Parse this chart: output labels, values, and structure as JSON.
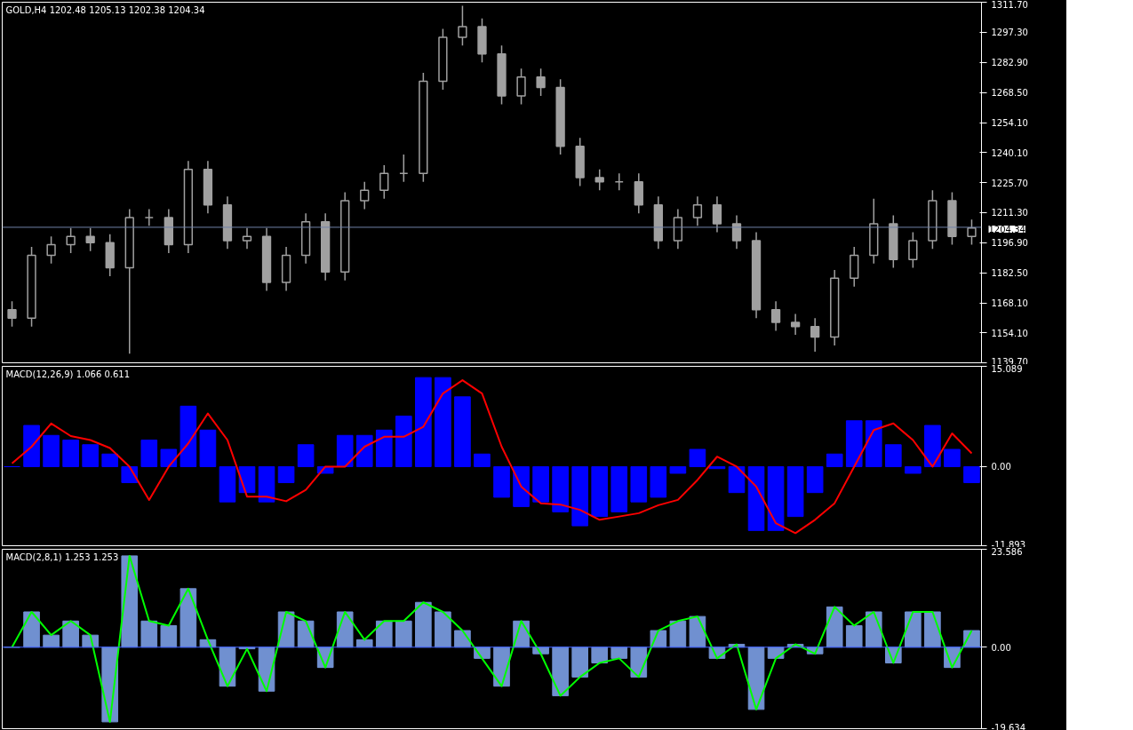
{
  "chart_data": [
    {
      "type": "candlestick",
      "title": "GOLD,H4 1202.48 1205.13 1202.38 1204.34",
      "color": "#a0a0a0",
      "tick_labels": "y",
      "categories": [
        null,
        null,
        null,
        null,
        null,
        null,
        null,
        null,
        null,
        null,
        null,
        null,
        null,
        null,
        null,
        null,
        null,
        null,
        null,
        null,
        null,
        null,
        null,
        null,
        null,
        null,
        null,
        null,
        null,
        null,
        null,
        null,
        null,
        null,
        null,
        null,
        null,
        null,
        null,
        null,
        null,
        null,
        null,
        null,
        null,
        null,
        null,
        null,
        null,
        null
      ],
      "ohlc": [
        [
          1165,
          1169,
          1157,
          1161
        ],
        [
          1161,
          1195,
          1157,
          1191
        ],
        [
          1191,
          1200,
          1187,
          1196
        ],
        [
          1196,
          1204,
          1192,
          1200
        ],
        [
          1200,
          1204,
          1193,
          1197
        ],
        [
          1197,
          1201,
          1181,
          1185
        ],
        [
          1185,
          1213,
          1144,
          1209
        ],
        [
          1209,
          1213,
          1205,
          1209
        ],
        [
          1209,
          1213,
          1192,
          1196
        ],
        [
          1196,
          1236,
          1192,
          1232
        ],
        [
          1232,
          1236,
          1211,
          1215
        ],
        [
          1215,
          1219,
          1194,
          1198
        ],
        [
          1198,
          1204,
          1194,
          1200
        ],
        [
          1200,
          1204,
          1174,
          1178
        ],
        [
          1178,
          1195,
          1174,
          1191
        ],
        [
          1191,
          1211,
          1187,
          1207
        ],
        [
          1207,
          1211,
          1179,
          1183
        ],
        [
          1183,
          1221,
          1179,
          1217
        ],
        [
          1217,
          1226,
          1213,
          1222
        ],
        [
          1222,
          1234,
          1218,
          1230
        ],
        [
          1230,
          1239,
          1226,
          1230
        ],
        [
          1230,
          1278,
          1226,
          1274
        ],
        [
          1274,
          1299,
          1270,
          1295
        ],
        [
          1295,
          1310,
          1291,
          1300
        ],
        [
          1300,
          1304,
          1283,
          1287
        ],
        [
          1287,
          1291,
          1263,
          1267
        ],
        [
          1267,
          1280,
          1263,
          1276
        ],
        [
          1276,
          1280,
          1267,
          1271
        ],
        [
          1271,
          1275,
          1239,
          1243
        ],
        [
          1243,
          1247,
          1224,
          1228
        ],
        [
          1228,
          1232,
          1222,
          1226
        ],
        [
          1226,
          1230,
          1222,
          1226
        ],
        [
          1226,
          1230,
          1211,
          1215
        ],
        [
          1215,
          1219,
          1194,
          1198
        ],
        [
          1198,
          1213,
          1194,
          1209
        ],
        [
          1209,
          1219,
          1205,
          1215
        ],
        [
          1215,
          1219,
          1202,
          1206
        ],
        [
          1206,
          1210,
          1194,
          1198
        ],
        [
          1198,
          1202,
          1161,
          1165
        ],
        [
          1165,
          1169,
          1155,
          1159
        ],
        [
          1159,
          1163,
          1153,
          1157
        ],
        [
          1157,
          1161,
          1145,
          1152
        ],
        [
          1152,
          1184,
          1148,
          1180
        ],
        [
          1180,
          1195,
          1176,
          1191
        ],
        [
          1191,
          1218,
          1187,
          1206
        ],
        [
          1206,
          1210,
          1185,
          1189
        ],
        [
          1189,
          1202,
          1185,
          1198
        ],
        [
          1198,
          1222,
          1194,
          1217
        ],
        [
          1217,
          1221,
          1196,
          1200
        ],
        [
          1200,
          1208,
          1196,
          1204
        ]
      ],
      "ylim": [
        1139.7,
        1311.7
      ],
      "yticks": [
        {
          "value": 1139.7,
          "label": "1139.70"
        },
        {
          "value": 1154.1,
          "label": "1154.10"
        },
        {
          "value": 1168.1,
          "label": "1168.10"
        },
        {
          "value": 1182.5,
          "label": "1182.50"
        },
        {
          "value": 1196.9,
          "label": "1196.90"
        },
        {
          "value": 1211.3,
          "label": "1211.30"
        },
        {
          "value": 1225.7,
          "label": "1225.70"
        },
        {
          "value": 1240.1,
          "label": "1240.10"
        },
        {
          "value": 1254.1,
          "label": "1254.10"
        },
        {
          "value": 1268.5,
          "label": "1268.50"
        },
        {
          "value": 1282.9,
          "label": "1282.90"
        },
        {
          "value": 1297.3,
          "label": "1297.30"
        },
        {
          "value": 1311.7,
          "label": "1311.70"
        }
      ],
      "ref_lines": [
        {
          "axis": "y",
          "value": 1204.34,
          "label": "1204.34",
          "color": "#7080a8"
        }
      ]
    },
    {
      "type": "bar",
      "title": "MACD(12,26,9) 1.066 0.611",
      "tick_labels": "y",
      "categories": [
        null,
        null,
        null,
        null,
        null,
        null,
        null,
        null,
        null,
        null,
        null,
        null,
        null,
        null,
        null,
        null,
        null,
        null,
        null,
        null,
        null,
        null,
        null,
        null,
        null,
        null,
        null,
        null,
        null,
        null,
        null,
        null,
        null,
        null,
        null,
        null,
        null,
        null,
        null,
        null,
        null,
        null,
        null,
        null,
        null,
        null,
        null,
        null,
        null,
        null
      ],
      "series": [
        {
          "type": "bar",
          "color": "#0000ff",
          "values": [
            0,
            6.2,
            4.7,
            4.0,
            3.3,
            1.9,
            -2.4,
            4.0,
            2.6,
            9.1,
            5.5,
            -5.3,
            -3.9,
            -5.3,
            -2.4,
            3.3,
            -1.0,
            4.7,
            4.7,
            5.5,
            7.6,
            13.4,
            13.4,
            10.5,
            1.9,
            -4.6,
            -6.0,
            -5.3,
            -6.8,
            -8.9,
            -7.5,
            -6.8,
            -5.3,
            -4.6,
            -1.0,
            2.6,
            -0.3,
            -3.9,
            -9.6,
            -9.6,
            -7.5,
            -3.9,
            1.9,
            6.9,
            6.9,
            3.3,
            -1.0,
            6.2,
            2.6,
            -2.4
          ]
        },
        {
          "type": "line",
          "color": "#ff0000",
          "values": [
            0.5,
            3,
            6.5,
            4.6,
            4,
            2.8,
            0,
            -5,
            0,
            3.5,
            8,
            4,
            -4.5,
            -4.5,
            -5.2,
            -3.5,
            0,
            0,
            3,
            4.5,
            4.5,
            6,
            11,
            13,
            11,
            3,
            -3,
            -5.5,
            -5.7,
            -6.5,
            -8,
            -7.5,
            -7,
            -5.8,
            -5,
            -2,
            1.5,
            0,
            -3,
            -8.5,
            -10,
            -8,
            -5.5,
            0,
            5.5,
            6.5,
            4,
            0,
            5,
            2
          ]
        }
      ],
      "ylim": [
        -11.893,
        15.089
      ],
      "yticks": [
        {
          "value": -11.893,
          "label": "-11.893"
        },
        {
          "value": 0,
          "label": "0.00"
        },
        {
          "value": 15.089,
          "label": "15.089"
        }
      ]
    },
    {
      "type": "bar",
      "title": "MACD(2,8,1) 1.253 1.253",
      "tick_labels": "y",
      "categories": [
        null,
        null,
        null,
        null,
        null,
        null,
        null,
        null,
        null,
        null,
        null,
        null,
        null,
        null,
        null,
        null,
        null,
        null,
        null,
        null,
        null,
        null,
        null,
        null,
        null,
        null,
        null,
        null,
        null,
        null,
        null,
        null,
        null,
        null,
        null,
        null,
        null,
        null,
        null,
        null,
        null,
        null,
        null,
        null,
        null,
        null,
        null,
        null,
        null,
        null
      ],
      "series": [
        {
          "type": "bar",
          "color": "#7090d0",
          "values": [
            0,
            8.5,
            2.9,
            6.3,
            2.9,
            -18,
            22,
            6.3,
            5.2,
            14.1,
            1.8,
            -9.4,
            -0.4,
            -10.6,
            8.5,
            6.3,
            -4.9,
            8.5,
            1.8,
            6.3,
            6.3,
            10.8,
            8.5,
            4.0,
            -2.7,
            -9.4,
            6.3,
            -1.6,
            -11.7,
            -7.2,
            -3.8,
            -2.7,
            -7.2,
            4.0,
            6.3,
            7.4,
            -2.7,
            0.7,
            -15.0,
            -2.7,
            0.7,
            -1.6,
            9.7,
            5.2,
            8.5,
            -3.8,
            8.5,
            8.5,
            -4.9,
            4.0
          ]
        },
        {
          "type": "line",
          "color": "#00ff00",
          "values": [
            0,
            8.5,
            2.9,
            6.3,
            2.9,
            -18,
            22,
            6.3,
            5.2,
            14.1,
            1.8,
            -9.4,
            -0.4,
            -10.6,
            8.5,
            6.3,
            -4.9,
            8.5,
            1.8,
            6.3,
            6.3,
            10.8,
            8.5,
            4.0,
            -2.7,
            -9.4,
            6.3,
            -1.6,
            -11.7,
            -7.2,
            -3.8,
            -2.7,
            -7.2,
            4.0,
            6.3,
            7.4,
            -2.7,
            0.7,
            -15.0,
            -2.7,
            0.7,
            -1.6,
            9.7,
            5.2,
            8.5,
            -3.8,
            8.5,
            8.5,
            -4.9,
            4.0
          ]
        }
      ],
      "ylim": [
        -19.634,
        23.586
      ],
      "yticks": [
        {
          "value": -19.634,
          "label": "-19.634"
        },
        {
          "value": 0,
          "label": "0.00"
        },
        {
          "value": 23.586,
          "label": "23.586"
        }
      ],
      "ref_lines": [
        {
          "axis": "y",
          "value": 0,
          "color": "#4060ff"
        }
      ]
    }
  ]
}
